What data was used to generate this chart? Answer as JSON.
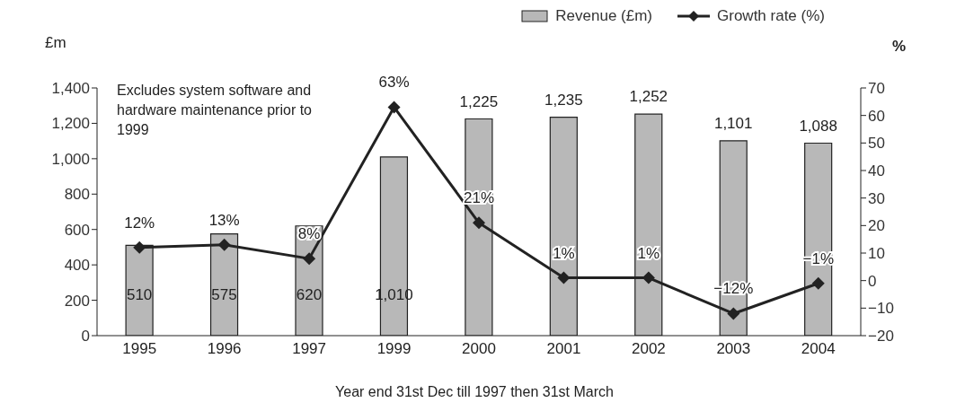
{
  "chart_data": {
    "type": "bar",
    "categories": [
      "1995",
      "1996",
      "1997",
      "1999",
      "2000",
      "2001",
      "2002",
      "2003",
      "2004"
    ],
    "series": [
      {
        "name": "Revenue (£m)",
        "color": "#b8b8b8",
        "values": [
          510,
          575,
          620,
          1010,
          1225,
          1235,
          1252,
          1101,
          1088
        ],
        "value_labels": [
          "510",
          "575",
          "620",
          "1,010",
          "1,225",
          "1,235",
          "1,252",
          "1,101",
          "1,088"
        ]
      },
      {
        "name": "Growth rate (%)",
        "type": "line",
        "axis": "y2",
        "color": "#222222",
        "marker": "diamond",
        "values": [
          12,
          13,
          8,
          63,
          21,
          1,
          1,
          -12,
          -1
        ],
        "value_labels": [
          "12%",
          "13%",
          "8%",
          "63%",
          "21%",
          "1%",
          "1%",
          "−12%",
          "−1%"
        ]
      }
    ],
    "ylabel": "£m",
    "y2label": "%",
    "xlabel": "Year end 31st Dec till 1997 then 31st March",
    "annotations": [
      "Excludes system software and hardware maintenance prior to 1999"
    ],
    "ylim": [
      0,
      1400
    ],
    "yticks": [
      0,
      200,
      400,
      600,
      800,
      {
        "value": 1000,
        "label": "1,000"
      },
      {
        "value": 1200,
        "label": "1,200"
      },
      {
        "value": 1400,
        "label": "1,400"
      }
    ],
    "y2lim": [
      -20,
      70
    ],
    "y2ticks": [
      {
        "value": -20,
        "label": "−20"
      },
      {
        "value": -10,
        "label": "−10"
      },
      0,
      10,
      20,
      30,
      40,
      50,
      60,
      70
    ],
    "grid": false,
    "legend": "top right"
  }
}
